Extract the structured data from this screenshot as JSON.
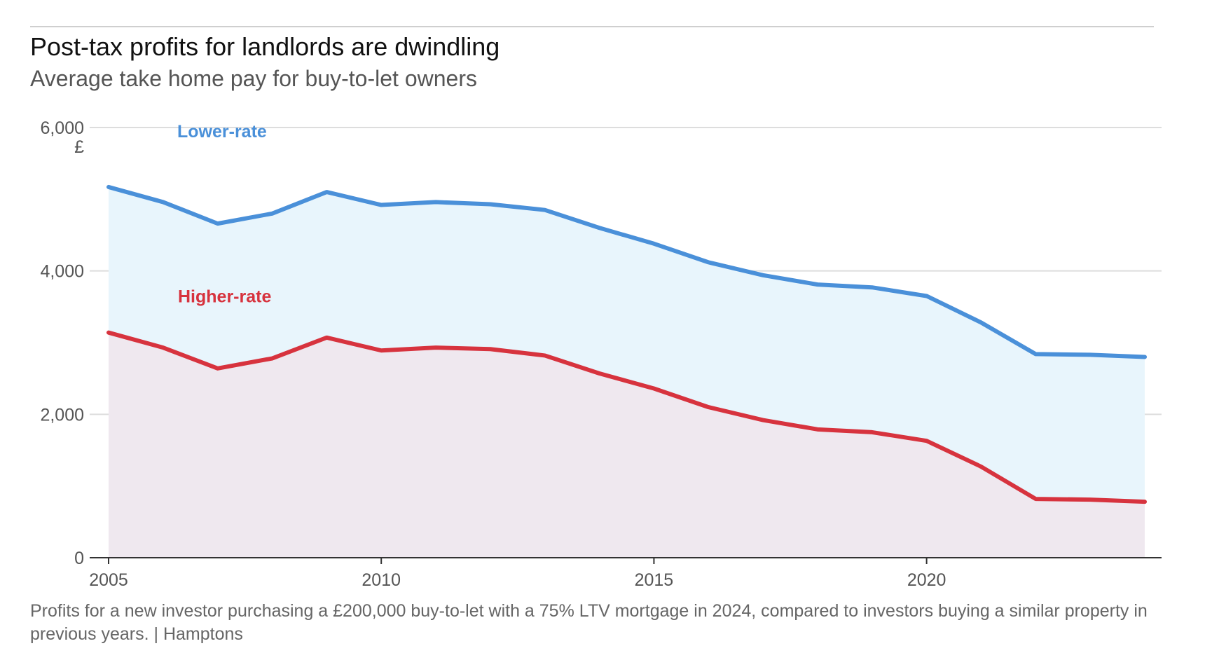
{
  "chart_data": {
    "type": "area",
    "title": "Post-tax profits for landlords are dwindling",
    "subtitle": "Average take home pay for buy-to-let owners",
    "ylabel": "£",
    "xlabel": "",
    "ylim": [
      0,
      6000
    ],
    "xlim": [
      2005,
      2024
    ],
    "yticks": [
      0,
      2000,
      4000,
      6000
    ],
    "ytick_labels": [
      "0",
      "2,000",
      "4,000",
      "6,000"
    ],
    "xticks": [
      2005,
      2010,
      2015,
      2020
    ],
    "xtick_labels": [
      "2005",
      "2010",
      "2015",
      "2020"
    ],
    "grid": true,
    "x": [
      2005,
      2006,
      2007,
      2008,
      2009,
      2010,
      2011,
      2012,
      2013,
      2014,
      2015,
      2016,
      2017,
      2018,
      2019,
      2020,
      2021,
      2022,
      2023,
      2024
    ],
    "series": [
      {
        "name": "Lower-rate",
        "color": "#4a90d9",
        "fill": "#e8f5fc",
        "values": [
          5170,
          4960,
          4660,
          4800,
          5100,
          4920,
          4960,
          4930,
          4850,
          4600,
          4380,
          4120,
          3940,
          3810,
          3770,
          3650,
          3280,
          2840,
          2830,
          2800
        ]
      },
      {
        "name": "Higher-rate",
        "color": "#d7333e",
        "fill": "#efe8ef",
        "values": [
          3140,
          2930,
          2640,
          2780,
          3070,
          2890,
          2930,
          2910,
          2820,
          2570,
          2360,
          2100,
          1920,
          1790,
          1750,
          1630,
          1270,
          820,
          810,
          780
        ]
      }
    ]
  },
  "footnote": {
    "text": "Profits for a new investor purchasing a £200,000 buy-to-let with a 75% LTV mortgage in 2024, compared to investors buying a similar property in previous years.",
    "separator": "|",
    "source": "Hamptons"
  }
}
